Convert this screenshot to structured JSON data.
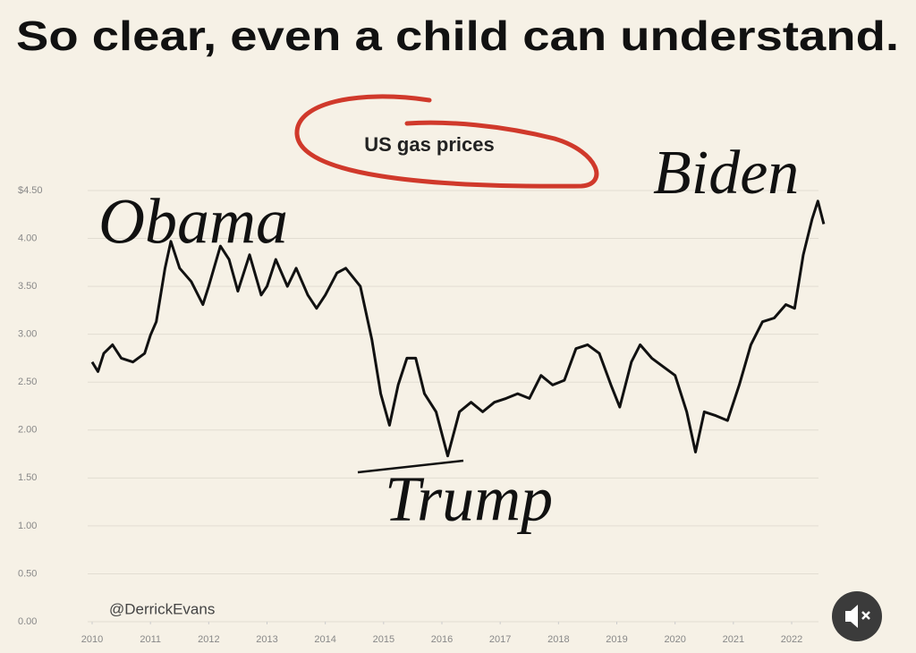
{
  "chart_data": {
    "type": "line",
    "title": "So clear, even a child can understand.",
    "subtitle": "US gas prices",
    "annotations": [
      "Obama",
      "Trump",
      "Biden"
    ],
    "source": "@DerrickEvans",
    "color": "#111111",
    "grid": true,
    "x": [
      2010.0,
      2010.1,
      2010.2,
      2010.35,
      2010.5,
      2010.7,
      2010.9,
      2011.0,
      2011.1,
      2011.25,
      2011.35,
      2011.5,
      2011.7,
      2011.9,
      2012.0,
      2012.2,
      2012.35,
      2012.5,
      2012.7,
      2012.9,
      2013.0,
      2013.15,
      2013.35,
      2013.5,
      2013.7,
      2013.85,
      2014.0,
      2014.2,
      2014.35,
      2014.6,
      2014.8,
      2014.95,
      2015.1,
      2015.25,
      2015.4,
      2015.55,
      2015.7,
      2015.9,
      2016.1,
      2016.3,
      2016.5,
      2016.7,
      2016.9,
      2017.1,
      2017.3,
      2017.5,
      2017.7,
      2017.9,
      2018.1,
      2018.3,
      2018.5,
      2018.7,
      2018.9,
      2019.05,
      2019.25,
      2019.4,
      2019.6,
      2019.8,
      2020.0,
      2020.2,
      2020.35,
      2020.5,
      2020.7,
      2020.9,
      2021.1,
      2021.3,
      2021.5,
      2021.7,
      2021.9,
      2022.05,
      2022.2,
      2022.35,
      2022.45,
      2022.55
    ],
    "values": [
      2.71,
      2.61,
      2.8,
      2.89,
      2.75,
      2.71,
      2.8,
      2.99,
      3.13,
      3.69,
      3.97,
      3.69,
      3.55,
      3.31,
      3.5,
      3.92,
      3.78,
      3.45,
      3.83,
      3.41,
      3.5,
      3.78,
      3.5,
      3.69,
      3.41,
      3.27,
      3.41,
      3.64,
      3.69,
      3.5,
      2.94,
      2.38,
      2.05,
      2.47,
      2.75,
      2.75,
      2.38,
      2.19,
      1.73,
      2.19,
      2.29,
      2.19,
      2.29,
      2.33,
      2.38,
      2.33,
      2.57,
      2.47,
      2.52,
      2.85,
      2.89,
      2.8,
      2.47,
      2.24,
      2.71,
      2.89,
      2.75,
      2.66,
      2.57,
      2.19,
      1.77,
      2.19,
      2.15,
      2.1,
      2.47,
      2.89,
      3.13,
      3.17,
      3.31,
      3.27,
      3.83,
      4.2,
      4.39,
      4.15
    ],
    "xlim": [
      2010,
      2022.5
    ],
    "xticks": [
      2010,
      2011,
      2012,
      2013,
      2014,
      2015,
      2016,
      2017,
      2018,
      2019,
      2020,
      2021,
      2022
    ],
    "ylim": [
      0,
      4.5
    ],
    "yticks": [
      {
        "value": 0,
        "label": "0.00"
      },
      {
        "value": 0.5,
        "label": "0.50"
      },
      {
        "value": 1,
        "label": "1.00"
      },
      {
        "value": 1.5,
        "label": "1.50"
      },
      {
        "value": 2,
        "label": "2.00"
      },
      {
        "value": 2.5,
        "label": "2.50"
      },
      {
        "value": 3,
        "label": "3.00"
      },
      {
        "value": 3.5,
        "label": "3.50"
      },
      {
        "value": 4,
        "label": "4.00"
      },
      {
        "value": 4.5,
        "label": "$4.50"
      }
    ]
  }
}
